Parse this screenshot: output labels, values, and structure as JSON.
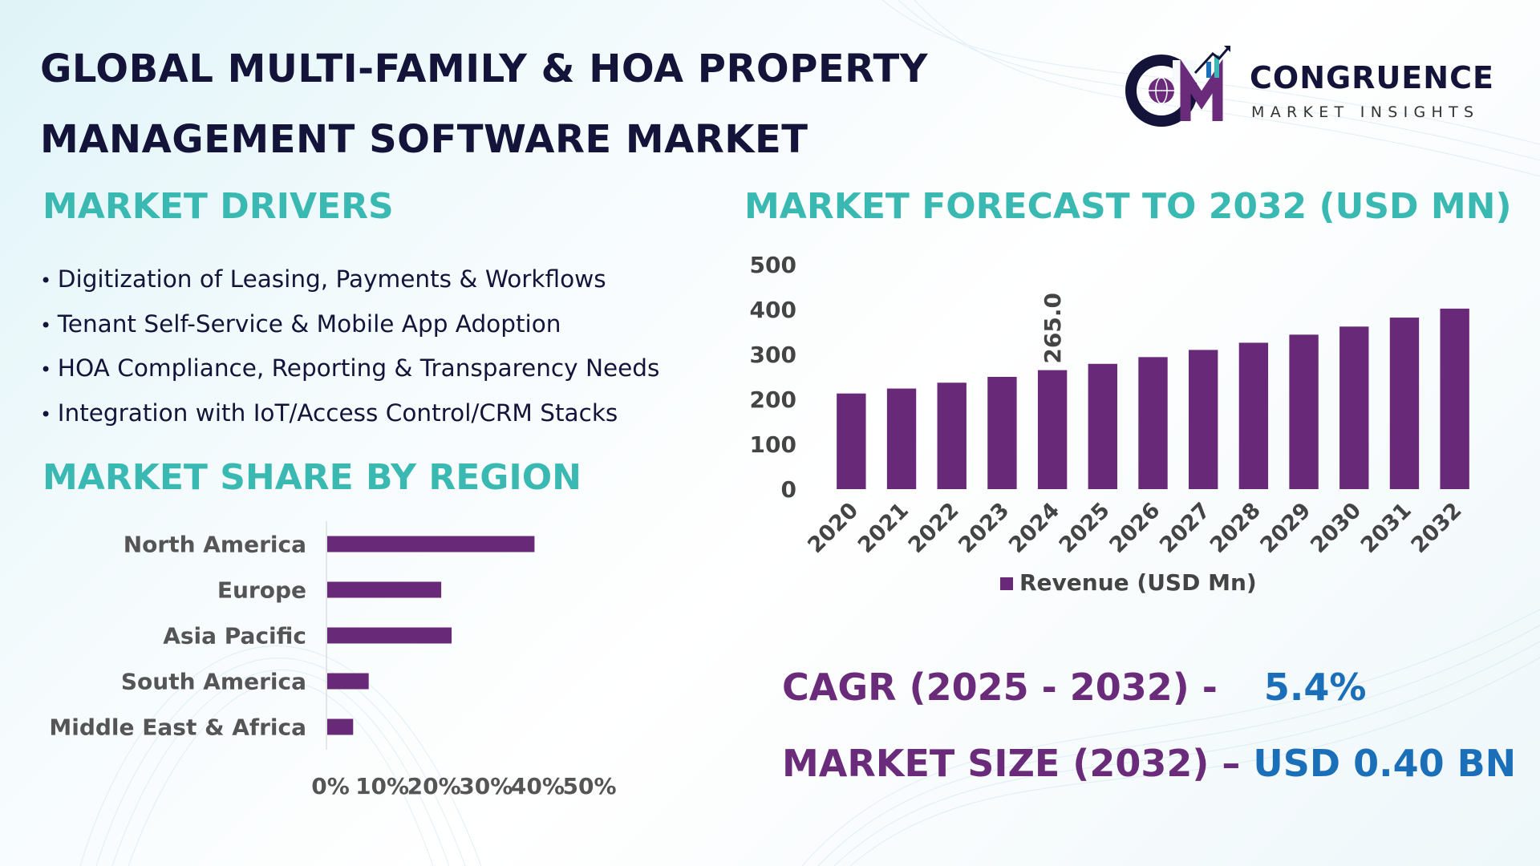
{
  "title": {
    "line1": "GLOBAL MULTI-FAMILY & HOA PROPERTY",
    "line2": "MANAGEMENT SOFTWARE MARKET"
  },
  "logo": {
    "name": "CONGRUENCE",
    "tagline": "MARKET INSIGHTS",
    "icon": "cmi-globe-chart-logo"
  },
  "drivers": {
    "heading": "MARKET DRIVERS",
    "items": [
      "Digitization of Leasing, Payments & Workflows",
      "Tenant Self-Service & Mobile App Adoption",
      "HOA Compliance, Reporting & Transparency Needs",
      "Integration with IoT/Access Control/CRM Stacks"
    ]
  },
  "forecast": {
    "heading": "MARKET FORECAST TO 2032 (USD MN)"
  },
  "region": {
    "heading": "MARKET SHARE BY REGION"
  },
  "stats": {
    "cagr_label": "CAGR (2025 - 2032) -",
    "cagr_value": "5.4%",
    "size_label": "MARKET SIZE (2032) –",
    "size_value": "USD 0.40 BN"
  },
  "colors": {
    "bar": "#682a78",
    "heading": "#3ab9b2",
    "accent_blue": "#1b6fb8",
    "title": "#14143a"
  },
  "chart_data": [
    {
      "type": "bar",
      "title": "",
      "categories": [
        "2020",
        "2021",
        "2022",
        "2023",
        "2024",
        "2025",
        "2026",
        "2027",
        "2028",
        "2029",
        "2030",
        "2031",
        "2032"
      ],
      "series": [
        {
          "name": "Revenue (USD Mn)",
          "values": [
            213,
            224,
            237,
            250,
            265,
            279,
            294,
            310,
            326,
            344,
            362,
            382,
            402
          ]
        }
      ],
      "data_labels": [
        {
          "category": "2024",
          "label": "265.0"
        }
      ],
      "yticks": [
        "0",
        "100",
        "200",
        "300",
        "400",
        "500"
      ],
      "ylim": [
        0,
        500
      ],
      "legend": "bottom",
      "grid": false,
      "xlabel": "",
      "ylabel": ""
    },
    {
      "type": "bar",
      "orientation": "horizontal",
      "title": "",
      "categories": [
        "North America",
        "Europe",
        "Asia Pacific",
        "South America",
        "Middle East & Africa"
      ],
      "values": [
        40,
        22,
        24,
        8,
        5
      ],
      "xticks": [
        "0%",
        "10%",
        "20%",
        "30%",
        "40%",
        "50%"
      ],
      "xlim": [
        0,
        50
      ],
      "grid": false,
      "xlabel": "",
      "ylabel": ""
    }
  ]
}
